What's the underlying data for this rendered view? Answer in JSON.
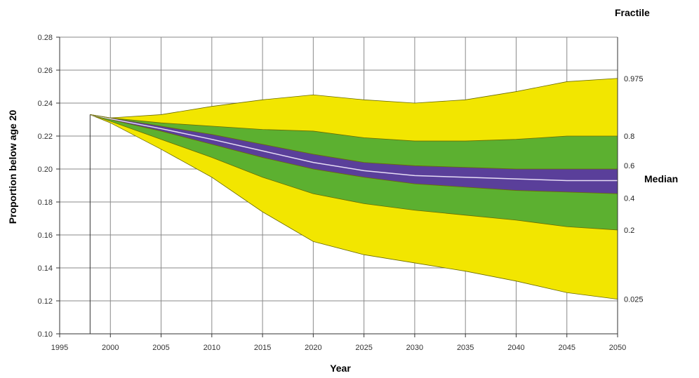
{
  "chart_data": {
    "type": "area",
    "title": "",
    "xlabel": "Year",
    "ylabel": "Proportion below age 20",
    "xlim": [
      1995,
      2050
    ],
    "ylim": [
      0.1,
      0.28
    ],
    "xticks": [
      "1995",
      "2000",
      "2005",
      "2010",
      "2015",
      "2020",
      "2025",
      "2030",
      "2035",
      "2040",
      "2045",
      "2050"
    ],
    "yticks": [
      "0.10",
      "0.12",
      "0.14",
      "0.16",
      "0.18",
      "0.20",
      "0.22",
      "0.24",
      "0.26",
      "0.28"
    ],
    "grid": true,
    "legend_title": "Fractile",
    "median_label": "Median",
    "colors": {
      "outer_band": "#f2e600",
      "middle_band": "#5cb030",
      "inner_band": "#5a3f9a",
      "median_line": "#e6dcf5",
      "edge": "#6b6b00",
      "grid": "#8a8a8a"
    },
    "start_point": {
      "x": 1998,
      "y": 0.233
    },
    "x": [
      2000,
      2005,
      2010,
      2015,
      2020,
      2025,
      2030,
      2035,
      2040,
      2045,
      2050
    ],
    "series": [
      {
        "name": "0.025",
        "values": [
          0.228,
          0.212,
          0.195,
          0.174,
          0.156,
          0.148,
          0.143,
          0.138,
          0.132,
          0.125,
          0.121
        ]
      },
      {
        "name": "0.2",
        "values": [
          0.229,
          0.218,
          0.207,
          0.195,
          0.185,
          0.179,
          0.175,
          0.172,
          0.169,
          0.165,
          0.163
        ]
      },
      {
        "name": "0.4",
        "values": [
          0.23,
          0.223,
          0.215,
          0.207,
          0.2,
          0.195,
          0.191,
          0.189,
          0.187,
          0.186,
          0.185
        ]
      },
      {
        "name": "Median",
        "values": [
          0.2305,
          0.2245,
          0.218,
          0.211,
          0.204,
          0.199,
          0.196,
          0.195,
          0.194,
          0.193,
          0.193
        ]
      },
      {
        "name": "0.6",
        "values": [
          0.231,
          0.226,
          0.221,
          0.215,
          0.209,
          0.204,
          0.202,
          0.201,
          0.2,
          0.2,
          0.2
        ]
      },
      {
        "name": "0.8",
        "values": [
          0.231,
          0.228,
          0.226,
          0.224,
          0.223,
          0.219,
          0.217,
          0.217,
          0.218,
          0.22,
          0.22
        ]
      },
      {
        "name": "0.975",
        "values": [
          0.231,
          0.233,
          0.238,
          0.242,
          0.245,
          0.242,
          0.24,
          0.242,
          0.247,
          0.253,
          0.255
        ]
      }
    ]
  }
}
